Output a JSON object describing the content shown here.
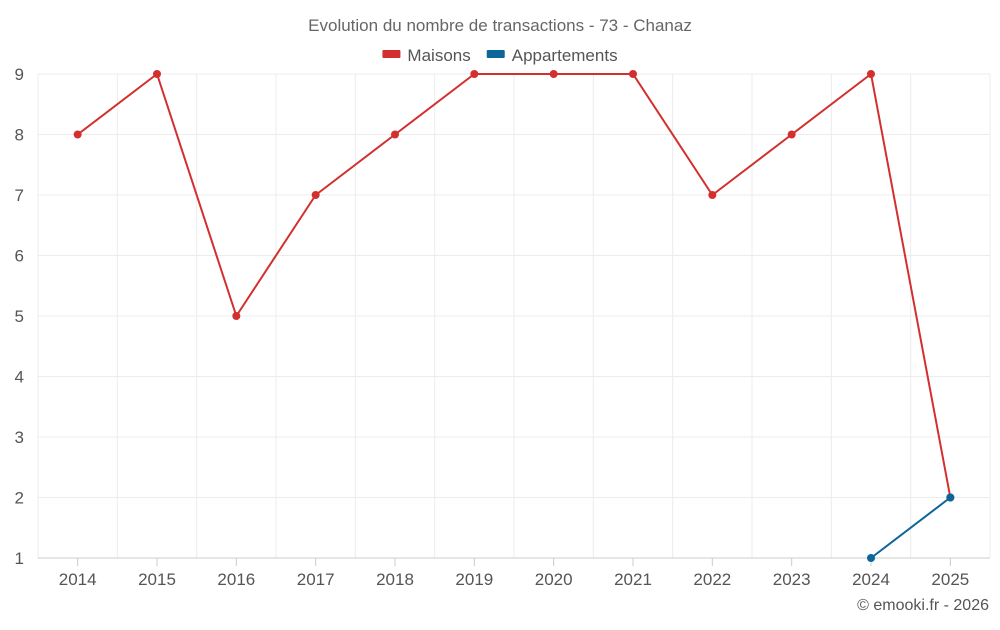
{
  "chart_data": {
    "type": "line",
    "title": "Evolution du nombre de transactions - 73 - Chanaz",
    "xlabel": "",
    "ylabel": "",
    "categories": [
      "2014",
      "2015",
      "2016",
      "2017",
      "2018",
      "2019",
      "2020",
      "2021",
      "2022",
      "2023",
      "2024",
      "2025"
    ],
    "ylim": [
      1,
      9
    ],
    "yticks": [
      1,
      2,
      3,
      4,
      5,
      6,
      7,
      8,
      9
    ],
    "grid": true,
    "legend_position": "top-center",
    "series": [
      {
        "name": "Maisons",
        "color": "#d32f2f",
        "values": [
          8,
          9,
          5,
          7,
          8,
          9,
          9,
          9,
          7,
          8,
          9,
          2
        ]
      },
      {
        "name": "Appartements",
        "color": "#0d6699",
        "values": [
          null,
          null,
          null,
          null,
          null,
          null,
          null,
          null,
          null,
          null,
          1,
          2
        ]
      }
    ]
  },
  "footer": {
    "credit": "© emooki.fr - 2026"
  }
}
